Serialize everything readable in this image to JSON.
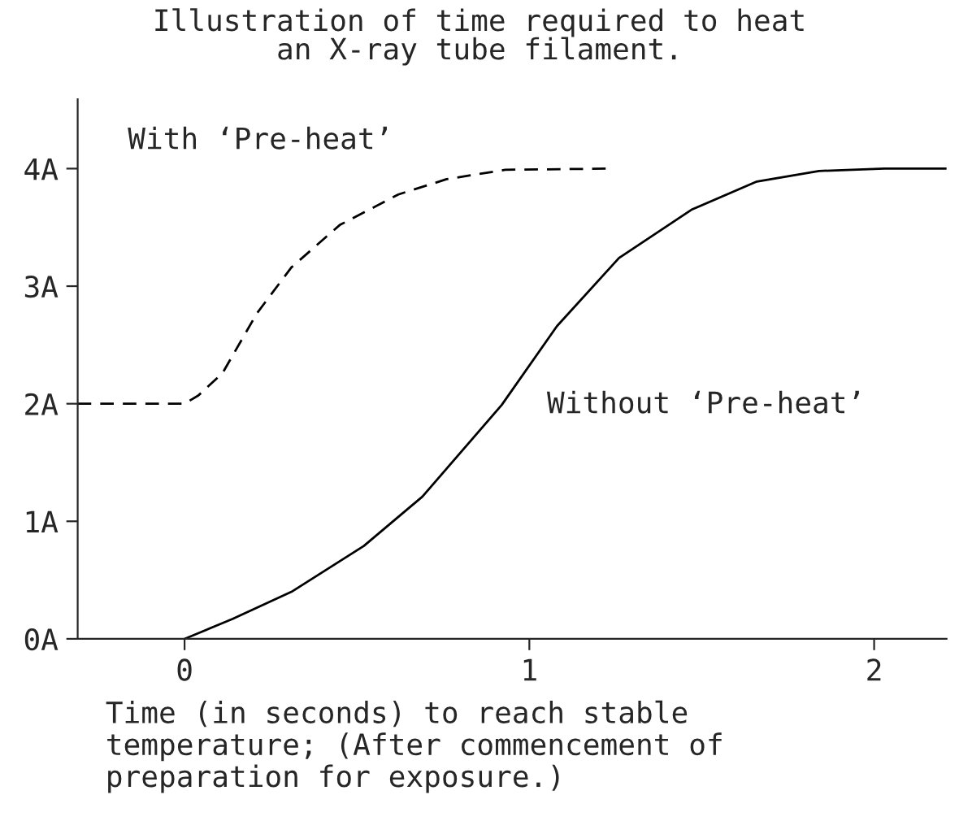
{
  "chart_data": {
    "type": "line",
    "title": "Illustration of time required to heat\nan X-ray tube filament.",
    "xlabel": "Time (in seconds) to reach stable\ntemperature; (After commencement of\npreparation for exposure.)",
    "series": [
      {
        "name": "Without ‘Pre-heat’",
        "color": "#000000",
        "line_style": "solid",
        "x": [
          0,
          0.14,
          0.31,
          0.52,
          0.69,
          0.92,
          1.08,
          1.26,
          1.47,
          1.66,
          1.84,
          2.03,
          2.21
        ],
        "values": [
          0,
          0.17,
          0.4,
          0.79,
          1.21,
          1.99,
          2.66,
          3.24,
          3.65,
          3.89,
          3.98,
          4.0,
          4.0
        ]
      },
      {
        "name": "With ‘Pre-heat’",
        "color": "#000000",
        "line_style": "dashed",
        "x": [
          -0.31,
          0,
          0.04,
          0.11,
          0.21,
          0.31,
          0.45,
          0.62,
          0.76,
          0.93,
          1.23
        ],
        "values": [
          2.0,
          2.0,
          2.07,
          2.26,
          2.77,
          3.16,
          3.52,
          3.78,
          3.91,
          3.99,
          4.0
        ]
      }
    ],
    "xlim": [
      -0.31,
      2.21
    ],
    "ylim": [
      0,
      4.59
    ],
    "xticks": [
      0,
      1,
      2
    ],
    "yticks": [
      {
        "value": 0,
        "label": "0A"
      },
      {
        "value": 1,
        "label": "1A"
      },
      {
        "value": 2,
        "label": "2A"
      },
      {
        "value": 3,
        "label": "3A"
      },
      {
        "value": 4,
        "label": "4A"
      }
    ],
    "grid": false,
    "legend": false,
    "marker": "none"
  }
}
